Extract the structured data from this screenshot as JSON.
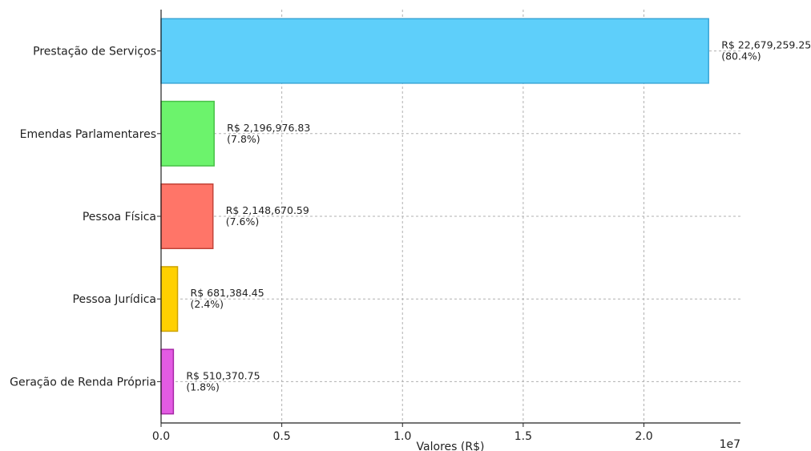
{
  "chart_data": {
    "type": "bar",
    "orientation": "horizontal",
    "categories": [
      "Prestação de Serviços",
      "Emendas Parlamentares",
      "Pessoa Física",
      "Pessoa Jurídica",
      "Geração de Renda Própria"
    ],
    "values": [
      22679259.25,
      2196976.83,
      2148670.59,
      681384.45,
      510370.75
    ],
    "data_labels": [
      [
        "R$ 22,679,259.25",
        "(80.4%)"
      ],
      [
        "R$ 2,196,976.83",
        "(7.8%)"
      ],
      [
        "R$ 2,148,670.59",
        "(7.6%)"
      ],
      [
        "R$ 681,384.45",
        "(2.4%)"
      ],
      [
        "R$ 510,370.75",
        "(1.8%)"
      ]
    ],
    "colors": [
      "#5ecffa",
      "#6cf36c",
      "#ff7568",
      "#ffd000",
      "#e35be3"
    ],
    "edge_colors": [
      "#3aa6d6",
      "#47c147",
      "#c2443a",
      "#cda300",
      "#a729a7"
    ],
    "xlabel": "Valores (R$)",
    "ylabel": "",
    "title": "",
    "x_ticks": [
      0.0,
      0.5,
      1.0,
      1.5,
      2.0
    ],
    "x_tick_labels": [
      "0.0",
      "0.5",
      "1.0",
      "1.5",
      "2.0"
    ],
    "x_scale_label": "1e7",
    "x_scale": 10000000,
    "xlim": [
      0,
      2.4
    ],
    "grid": true
  }
}
